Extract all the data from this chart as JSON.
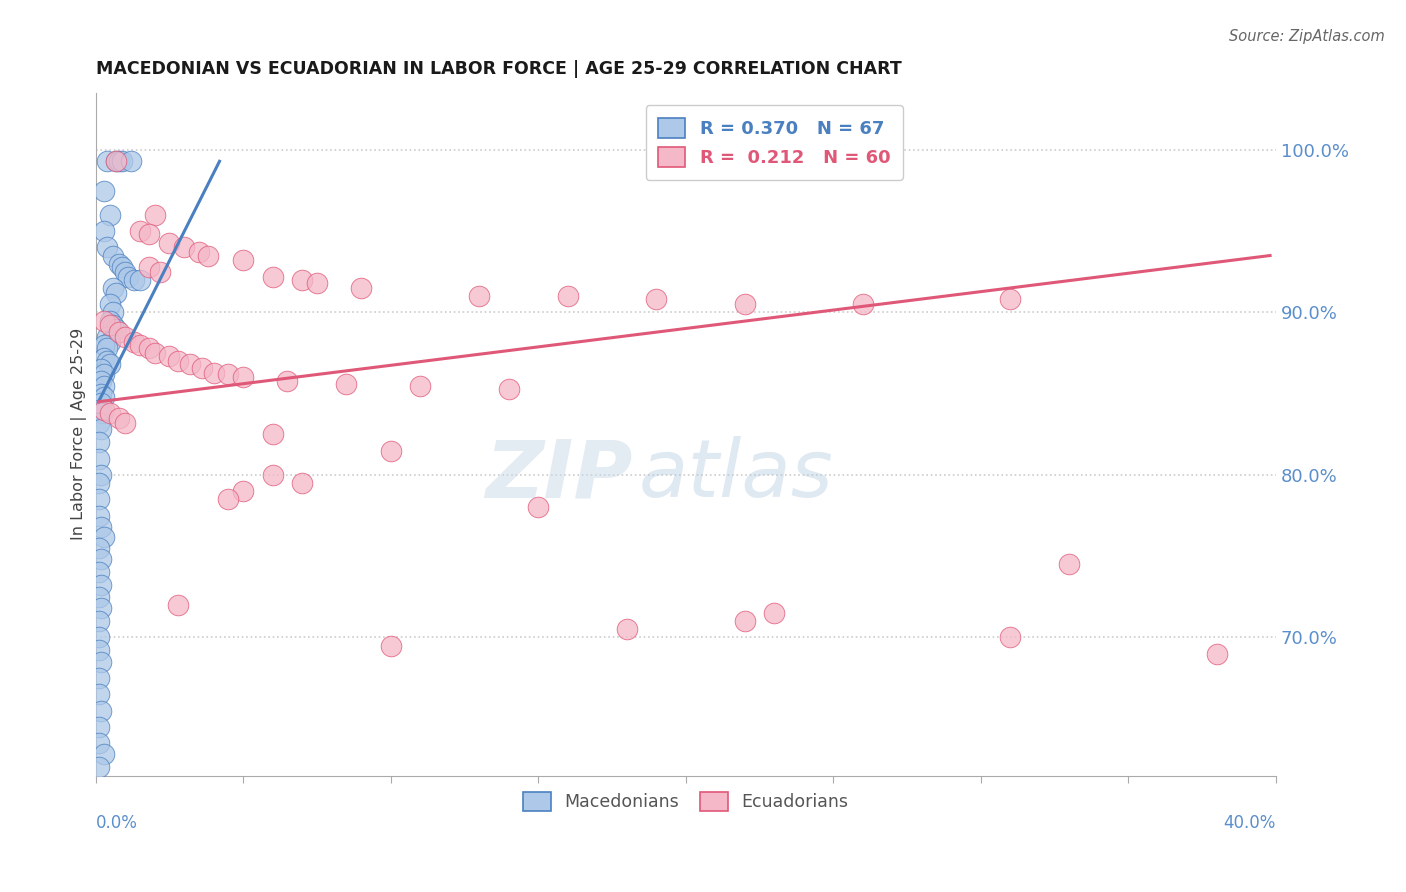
{
  "title": "MACEDONIAN VS ECUADORIAN IN LABOR FORCE | AGE 25-29 CORRELATION CHART",
  "source": "Source: ZipAtlas.com",
  "ylabel": "In Labor Force | Age 25-29",
  "ytick_labels": [
    "100.0%",
    "90.0%",
    "80.0%",
    "70.0%"
  ],
  "ytick_values": [
    1.0,
    0.9,
    0.8,
    0.7
  ],
  "xlim": [
    0.0,
    0.4
  ],
  "ylim": [
    0.615,
    1.035
  ],
  "blue_R": 0.37,
  "blue_N": 67,
  "pink_R": 0.212,
  "pink_N": 60,
  "blue_color": "#adc8e8",
  "blue_edge_color": "#4a80c0",
  "pink_color": "#f4b8c8",
  "pink_edge_color": "#e05878",
  "blue_scatter": [
    [
      0.004,
      0.993
    ],
    [
      0.007,
      0.993
    ],
    [
      0.008,
      0.993
    ],
    [
      0.009,
      0.993
    ],
    [
      0.012,
      0.993
    ],
    [
      0.003,
      0.975
    ],
    [
      0.005,
      0.96
    ],
    [
      0.003,
      0.95
    ],
    [
      0.004,
      0.94
    ],
    [
      0.006,
      0.935
    ],
    [
      0.008,
      0.93
    ],
    [
      0.009,
      0.928
    ],
    [
      0.01,
      0.925
    ],
    [
      0.011,
      0.922
    ],
    [
      0.013,
      0.92
    ],
    [
      0.015,
      0.92
    ],
    [
      0.006,
      0.915
    ],
    [
      0.007,
      0.912
    ],
    [
      0.005,
      0.905
    ],
    [
      0.006,
      0.9
    ],
    [
      0.005,
      0.895
    ],
    [
      0.006,
      0.892
    ],
    [
      0.007,
      0.89
    ],
    [
      0.004,
      0.885
    ],
    [
      0.005,
      0.882
    ],
    [
      0.003,
      0.88
    ],
    [
      0.004,
      0.878
    ],
    [
      0.003,
      0.872
    ],
    [
      0.004,
      0.87
    ],
    [
      0.005,
      0.868
    ],
    [
      0.002,
      0.865
    ],
    [
      0.003,
      0.862
    ],
    [
      0.002,
      0.858
    ],
    [
      0.003,
      0.855
    ],
    [
      0.002,
      0.85
    ],
    [
      0.003,
      0.848
    ],
    [
      0.002,
      0.844
    ],
    [
      0.001,
      0.84
    ],
    [
      0.002,
      0.838
    ],
    [
      0.001,
      0.832
    ],
    [
      0.002,
      0.828
    ],
    [
      0.001,
      0.82
    ],
    [
      0.001,
      0.81
    ],
    [
      0.002,
      0.8
    ],
    [
      0.001,
      0.795
    ],
    [
      0.001,
      0.785
    ],
    [
      0.001,
      0.775
    ],
    [
      0.002,
      0.768
    ],
    [
      0.003,
      0.762
    ],
    [
      0.001,
      0.755
    ],
    [
      0.002,
      0.748
    ],
    [
      0.001,
      0.74
    ],
    [
      0.002,
      0.732
    ],
    [
      0.001,
      0.725
    ],
    [
      0.002,
      0.718
    ],
    [
      0.001,
      0.71
    ],
    [
      0.001,
      0.7
    ],
    [
      0.001,
      0.692
    ],
    [
      0.002,
      0.685
    ],
    [
      0.001,
      0.675
    ],
    [
      0.001,
      0.665
    ],
    [
      0.002,
      0.655
    ],
    [
      0.001,
      0.645
    ],
    [
      0.001,
      0.635
    ],
    [
      0.003,
      0.628
    ],
    [
      0.001,
      0.62
    ]
  ],
  "pink_scatter": [
    [
      0.007,
      0.993
    ],
    [
      0.02,
      0.96
    ],
    [
      0.015,
      0.95
    ],
    [
      0.018,
      0.948
    ],
    [
      0.025,
      0.943
    ],
    [
      0.03,
      0.94
    ],
    [
      0.035,
      0.937
    ],
    [
      0.038,
      0.935
    ],
    [
      0.05,
      0.932
    ],
    [
      0.018,
      0.928
    ],
    [
      0.022,
      0.925
    ],
    [
      0.06,
      0.922
    ],
    [
      0.07,
      0.92
    ],
    [
      0.075,
      0.918
    ],
    [
      0.09,
      0.915
    ],
    [
      0.13,
      0.91
    ],
    [
      0.16,
      0.91
    ],
    [
      0.19,
      0.908
    ],
    [
      0.22,
      0.905
    ],
    [
      0.26,
      0.905
    ],
    [
      0.31,
      0.908
    ],
    [
      0.003,
      0.895
    ],
    [
      0.005,
      0.892
    ],
    [
      0.008,
      0.888
    ],
    [
      0.01,
      0.885
    ],
    [
      0.013,
      0.882
    ],
    [
      0.015,
      0.88
    ],
    [
      0.018,
      0.878
    ],
    [
      0.02,
      0.875
    ],
    [
      0.025,
      0.873
    ],
    [
      0.028,
      0.87
    ],
    [
      0.032,
      0.868
    ],
    [
      0.036,
      0.866
    ],
    [
      0.04,
      0.863
    ],
    [
      0.045,
      0.862
    ],
    [
      0.05,
      0.86
    ],
    [
      0.065,
      0.858
    ],
    [
      0.085,
      0.856
    ],
    [
      0.11,
      0.855
    ],
    [
      0.14,
      0.853
    ],
    [
      0.003,
      0.84
    ],
    [
      0.005,
      0.838
    ],
    [
      0.008,
      0.835
    ],
    [
      0.01,
      0.832
    ],
    [
      0.06,
      0.825
    ],
    [
      0.1,
      0.815
    ],
    [
      0.06,
      0.8
    ],
    [
      0.07,
      0.795
    ],
    [
      0.05,
      0.79
    ],
    [
      0.045,
      0.785
    ],
    [
      0.15,
      0.78
    ],
    [
      0.33,
      0.745
    ],
    [
      0.028,
      0.72
    ],
    [
      0.23,
      0.715
    ],
    [
      0.22,
      0.71
    ],
    [
      0.18,
      0.705
    ],
    [
      0.31,
      0.7
    ],
    [
      0.1,
      0.695
    ],
    [
      0.38,
      0.69
    ]
  ],
  "blue_line_x": [
    0.001,
    0.042
  ],
  "blue_line_y": [
    0.845,
    0.993
  ],
  "pink_line_x": [
    0.001,
    0.398
  ],
  "pink_line_y": [
    0.845,
    0.935
  ],
  "legend_blue_label": "Macedonians",
  "legend_pink_label": "Ecuadorians",
  "watermark_zip": "ZIP",
  "watermark_atlas": "atlas",
  "background_color": "#ffffff",
  "grid_color": "#cccccc",
  "title_color": "#1a1a1a",
  "axis_label_color": "#5b8fcc",
  "right_ytick_color": "#5b8fcc"
}
